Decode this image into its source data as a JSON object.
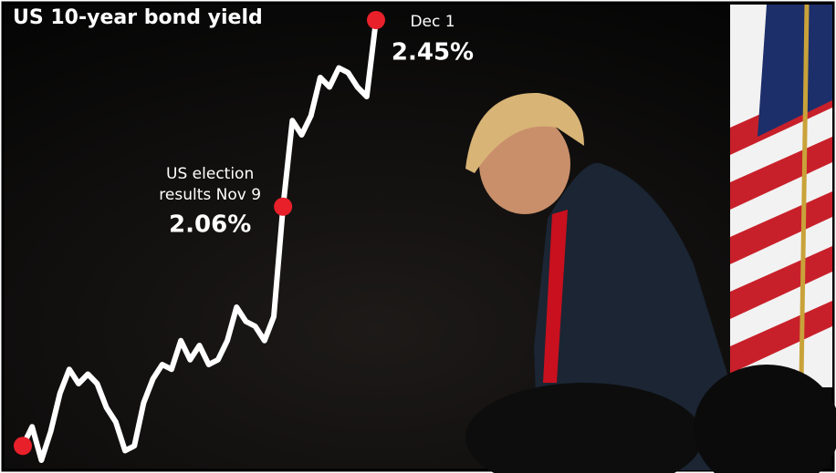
{
  "chart_data": {
    "type": "line",
    "title": "US 10-year bond yield",
    "values": [
      1.56,
      1.6,
      1.53,
      1.59,
      1.67,
      1.72,
      1.69,
      1.71,
      1.69,
      1.64,
      1.61,
      1.55,
      1.56,
      1.65,
      1.7,
      1.73,
      1.72,
      1.78,
      1.74,
      1.77,
      1.73,
      1.74,
      1.78,
      1.85,
      1.82,
      1.81,
      1.78,
      1.83,
      2.06,
      2.24,
      2.21,
      2.25,
      2.33,
      2.31,
      2.35,
      2.34,
      2.31,
      2.29,
      2.45
    ],
    "color": "#ffffff",
    "marker_color": "#e8202a",
    "annotations": [
      {
        "lines": [
          "US election",
          "results Nov 9"
        ],
        "value": 2.06,
        "value_label": "2.06%"
      },
      {
        "lines": [
          "Dec 1"
        ],
        "value": 2.45,
        "value_label": "2.45%"
      }
    ]
  }
}
